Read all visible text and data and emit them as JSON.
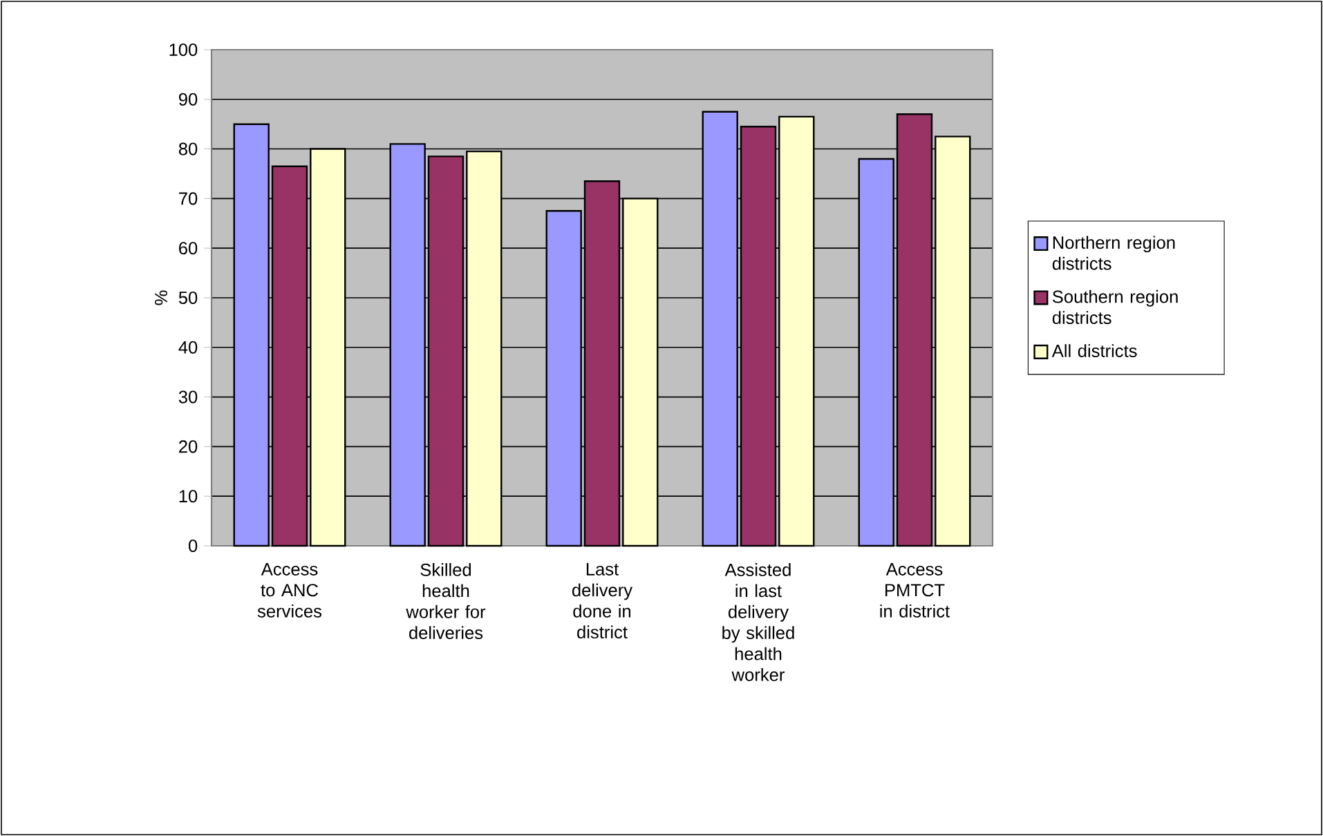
{
  "chart_data": {
    "type": "bar",
    "ylabel": "%",
    "categories": [
      "Access to ANC services",
      "Skilled health worker for deliveries",
      "Last delivery done in district",
      "Assisted in last delivery by skilled health worker",
      "Access PMTCT in district"
    ],
    "series": [
      {
        "name": "Northern region districts",
        "color": "#9999ff",
        "values": [
          85,
          81,
          67.5,
          87.5,
          78
        ]
      },
      {
        "name": "Southern region districts",
        "color": "#993366",
        "values": [
          76.5,
          78.5,
          73.5,
          84.5,
          87
        ]
      },
      {
        "name": "All districts",
        "color": "#ffffcc",
        "values": [
          80,
          79.5,
          70,
          86.5,
          82.5
        ]
      }
    ],
    "ylim": [
      0,
      100
    ],
    "yticks": [
      0,
      10,
      20,
      30,
      40,
      50,
      60,
      70,
      80,
      90,
      100
    ],
    "grid": "y",
    "legend": "right"
  }
}
